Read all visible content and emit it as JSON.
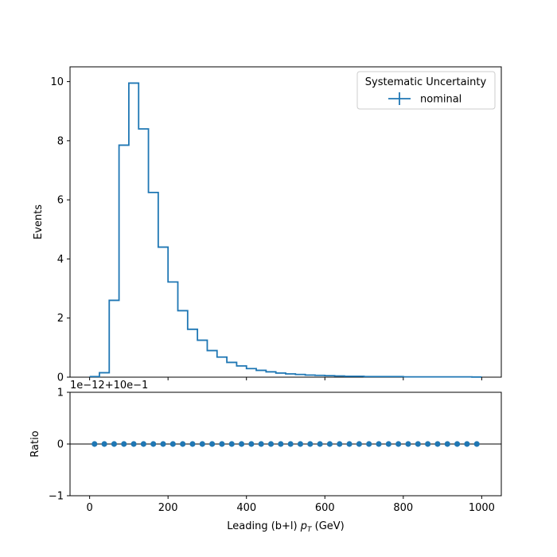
{
  "chart_data": [
    {
      "type": "line",
      "panel": "main",
      "ylabel": "Events",
      "xlim": [
        -50,
        1050
      ],
      "ylim": [
        0,
        10.5
      ],
      "yticks": [
        0,
        2,
        4,
        6,
        8,
        10
      ],
      "ytick_labels": [
        "0",
        "2",
        "4",
        "6",
        "8",
        "10"
      ],
      "grid": false,
      "legend": {
        "title": "Systematic Uncertainty",
        "placement": "top-right",
        "entries": [
          "nominal"
        ]
      },
      "series": [
        {
          "name": "nominal",
          "color": "#1f77b4",
          "bin_edges": [
            0,
            25,
            50,
            75,
            100,
            125,
            150,
            175,
            200,
            225,
            250,
            275,
            300,
            325,
            350,
            375,
            400,
            425,
            450,
            475,
            500,
            525,
            550,
            575,
            600,
            625,
            650,
            675,
            700,
            725,
            750,
            775,
            800,
            825,
            850,
            875,
            900,
            925,
            950,
            975,
            1000
          ],
          "values": [
            0.02,
            0.15,
            2.6,
            7.85,
            9.95,
            8.4,
            6.25,
            4.4,
            3.22,
            2.25,
            1.62,
            1.25,
            0.9,
            0.68,
            0.5,
            0.38,
            0.29,
            0.23,
            0.18,
            0.14,
            0.11,
            0.09,
            0.07,
            0.06,
            0.05,
            0.04,
            0.03,
            0.03,
            0.02,
            0.02,
            0.02,
            0.02,
            0.01,
            0.01,
            0.01,
            0.01,
            0.01,
            0.01,
            0.01,
            0.005
          ]
        }
      ]
    },
    {
      "type": "scatter",
      "panel": "ratio",
      "xlabel_prefix": "Leading (b+l) ",
      "xlabel_var": "p",
      "xlabel_sub": "T",
      "xlabel_suffix": " (GeV)",
      "ylabel": "Ratio",
      "offset_label": "1e−12+10e−1",
      "xlim": [
        -50,
        1050
      ],
      "ylim": [
        -1,
        1
      ],
      "xticks": [
        0,
        200,
        400,
        600,
        800,
        1000
      ],
      "xtick_labels": [
        "0",
        "200",
        "400",
        "600",
        "800",
        "1000"
      ],
      "yticks": [
        -1,
        0,
        1
      ],
      "ytick_labels": [
        "−1",
        "0",
        "1"
      ],
      "reference_line": 0,
      "series": [
        {
          "name": "nominal",
          "color": "#1f77b4",
          "x": [
            12.5,
            37.5,
            62.5,
            87.5,
            112.5,
            137.5,
            162.5,
            187.5,
            212.5,
            237.5,
            262.5,
            287.5,
            312.5,
            337.5,
            362.5,
            387.5,
            412.5,
            437.5,
            462.5,
            487.5,
            512.5,
            537.5,
            562.5,
            587.5,
            612.5,
            637.5,
            662.5,
            687.5,
            712.5,
            737.5,
            762.5,
            787.5,
            812.5,
            837.5,
            862.5,
            887.5,
            912.5,
            937.5,
            962.5,
            987.5
          ],
          "y": [
            0,
            0,
            0,
            0,
            0,
            0,
            0,
            0,
            0,
            0,
            0,
            0,
            0,
            0,
            0,
            0,
            0,
            0,
            0,
            0,
            0,
            0,
            0,
            0,
            0,
            0,
            0,
            0,
            0,
            0,
            0,
            0,
            0,
            0,
            0,
            0,
            0,
            0,
            0,
            0
          ]
        }
      ]
    }
  ]
}
